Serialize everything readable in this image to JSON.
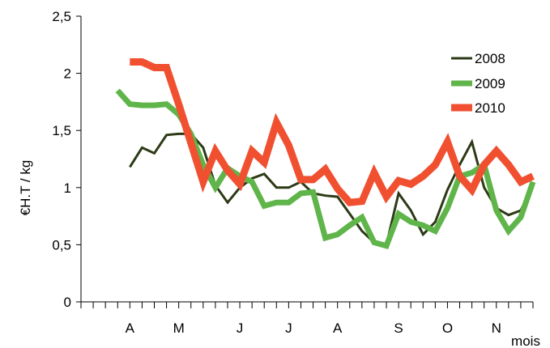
{
  "chart_data": {
    "type": "line",
    "title": "",
    "ylabel": "€H.T / kg",
    "xlabel": "mois",
    "ylim": [
      0,
      2.5
    ],
    "yticks": [
      0,
      0.5,
      1,
      1.5,
      2,
      2.5
    ],
    "ytick_labels": [
      "0",
      "0,5",
      "1",
      "1,5",
      "2",
      "2,5"
    ],
    "x_index_range": [
      0,
      37
    ],
    "month_labels": [
      {
        "label": "A",
        "index": 4
      },
      {
        "label": "M",
        "index": 8
      },
      {
        "label": "J",
        "index": 13
      },
      {
        "label": "J",
        "index": 17
      },
      {
        "label": "A",
        "index": 21
      },
      {
        "label": "S",
        "index": 26
      },
      {
        "label": "O",
        "index": 30
      },
      {
        "label": "N",
        "index": 34
      }
    ],
    "legend_position": "top-right",
    "series": [
      {
        "name": "2008",
        "color": "#2d3a16",
        "x": [
          4,
          5,
          6,
          7,
          8,
          9,
          10,
          11,
          12,
          13,
          14,
          15,
          16,
          17,
          18,
          19,
          20,
          21,
          22,
          23,
          24,
          25,
          26,
          27,
          28,
          29,
          30,
          31,
          32,
          33,
          34,
          35,
          36,
          37
        ],
        "values": [
          1.18,
          1.35,
          1.3,
          1.46,
          1.47,
          1.47,
          1.35,
          1.02,
          0.87,
          1.0,
          1.08,
          1.12,
          1.0,
          1.0,
          1.05,
          0.95,
          0.93,
          0.92,
          0.77,
          0.62,
          0.52,
          0.5,
          0.95,
          0.8,
          0.59,
          0.7,
          0.98,
          1.2,
          1.4,
          1.0,
          0.82,
          0.76,
          0.8,
          1.02
        ]
      },
      {
        "name": "2009",
        "color": "#5fb54a",
        "x": [
          3,
          4,
          5,
          6,
          7,
          8,
          9,
          10,
          11,
          12,
          13,
          14,
          15,
          16,
          17,
          18,
          19,
          20,
          21,
          22,
          23,
          24,
          25,
          26,
          27,
          28,
          29,
          30,
          31,
          32,
          33,
          34,
          35,
          36,
          37
        ],
        "values": [
          1.85,
          1.73,
          1.72,
          1.72,
          1.73,
          1.64,
          1.47,
          1.2,
          1.0,
          1.17,
          1.1,
          1.05,
          0.84,
          0.87,
          0.87,
          0.95,
          0.96,
          0.56,
          0.59,
          0.67,
          0.74,
          0.52,
          0.49,
          0.77,
          0.7,
          0.67,
          0.62,
          0.82,
          1.1,
          1.13,
          1.2,
          0.8,
          0.62,
          0.74,
          1.05
        ]
      },
      {
        "name": "2010",
        "color": "#f05030",
        "x": [
          4,
          5,
          6,
          7,
          8,
          9,
          10,
          11,
          12,
          13,
          14,
          15,
          16,
          17,
          18,
          19,
          20,
          21,
          22,
          23,
          24,
          25,
          26,
          27,
          28,
          29,
          30,
          31,
          32,
          33,
          34,
          35,
          36,
          37
        ],
        "values": [
          2.1,
          2.1,
          2.05,
          2.05,
          1.73,
          1.39,
          1.05,
          1.32,
          1.15,
          1.03,
          1.32,
          1.22,
          1.57,
          1.37,
          1.07,
          1.07,
          1.16,
          0.99,
          0.87,
          0.88,
          1.13,
          0.92,
          1.06,
          1.03,
          1.1,
          1.2,
          1.4,
          1.1,
          0.98,
          1.2,
          1.32,
          1.2,
          1.05,
          1.1
        ]
      }
    ]
  }
}
